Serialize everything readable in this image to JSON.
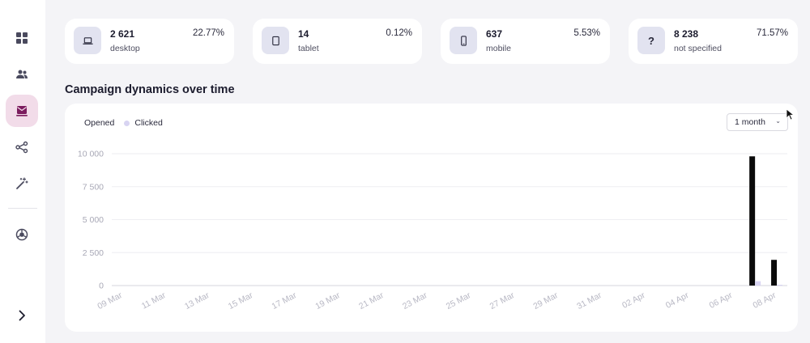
{
  "sidebar": {
    "items": [
      {
        "name": "dashboard",
        "icon": "grid-icon",
        "active": false
      },
      {
        "name": "audience",
        "icon": "users-icon",
        "active": false
      },
      {
        "name": "campaigns",
        "icon": "mail-icon",
        "active": true
      },
      {
        "name": "automation",
        "icon": "workflow-icon",
        "active": false
      },
      {
        "name": "tools",
        "icon": "magic-wand-icon",
        "active": false
      },
      {
        "name": "integrations",
        "icon": "globe-icon",
        "active": false
      }
    ],
    "expand_icon": "chevron-right-icon"
  },
  "stats": [
    {
      "icon": "laptop-icon",
      "value": "2 621",
      "label": "desktop",
      "percent": "22.77%"
    },
    {
      "icon": "tablet-icon",
      "value": "14",
      "label": "tablet",
      "percent": "0.12%"
    },
    {
      "icon": "mobile-icon",
      "value": "637",
      "label": "mobile",
      "percent": "5.53%"
    },
    {
      "icon": "question-icon",
      "glyph": "?",
      "value": "8 238",
      "label": "not specified",
      "percent": "71.57%"
    }
  ],
  "section": {
    "title": "Campaign dynamics over time"
  },
  "chart_controls": {
    "period": "1 month"
  },
  "colors": {
    "opened": "#0a0a0a",
    "clicked": "#d8d4f2",
    "accent": "#7b1c5e"
  },
  "chart_data": {
    "type": "bar",
    "series": [
      {
        "name": "Opened",
        "color": "#0a0a0a",
        "values": {
          "07 Apr": 9800,
          "08 Apr": 1950
        }
      },
      {
        "name": "Clicked",
        "color": "#d8d4f2",
        "values": {
          "07 Apr": 330,
          "08 Apr": 60
        }
      }
    ],
    "categories": [
      "09 Mar",
      "10 Mar",
      "11 Mar",
      "12 Mar",
      "13 Mar",
      "14 Mar",
      "15 Mar",
      "16 Mar",
      "17 Mar",
      "18 Mar",
      "19 Mar",
      "20 Mar",
      "21 Mar",
      "22 Mar",
      "23 Mar",
      "24 Mar",
      "25 Mar",
      "26 Mar",
      "27 Mar",
      "28 Mar",
      "29 Mar",
      "30 Mar",
      "31 Mar",
      "01 Apr",
      "02 Apr",
      "03 Apr",
      "04 Apr",
      "05 Apr",
      "06 Apr",
      "07 Apr",
      "08 Apr"
    ],
    "x_tick_labels": [
      "09 Mar",
      "11 Mar",
      "13 Mar",
      "15 Mar",
      "17 Mar",
      "19 Mar",
      "21 Mar",
      "23 Mar",
      "25 Mar",
      "27 Mar",
      "29 Mar",
      "31 Mar",
      "02 Apr",
      "04 Apr",
      "06 Apr",
      "08 Apr"
    ],
    "y_ticks": [
      0,
      2500,
      5000,
      7500,
      10000
    ],
    "y_tick_labels": [
      "0",
      "2 500",
      "5 000",
      "7 500",
      "10 000"
    ],
    "ylim": [
      0,
      10000
    ],
    "grid": true,
    "legend": "top-left"
  }
}
